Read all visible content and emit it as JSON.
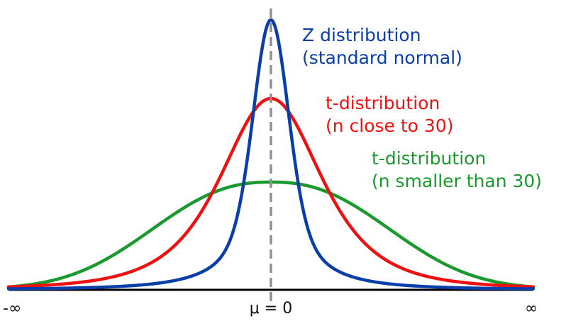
{
  "colors": {
    "z_curve": "#0a3ea8",
    "t_close_curve": "#ee1111",
    "t_small_curve": "#1a9a2e",
    "axis": "#000000",
    "mean_line": "#909090"
  },
  "axis": {
    "left_label": "-∞",
    "center_label": "μ = 0",
    "right_label": "∞"
  },
  "labels": {
    "z": {
      "line1": "Z distribution",
      "line2": "(standard normal)"
    },
    "t_close": {
      "line1": "t-distribution",
      "line2": "(n close to 30)"
    },
    "t_small": {
      "line1": "t-distribution",
      "line2": "(n smaller than 30)"
    }
  }
}
